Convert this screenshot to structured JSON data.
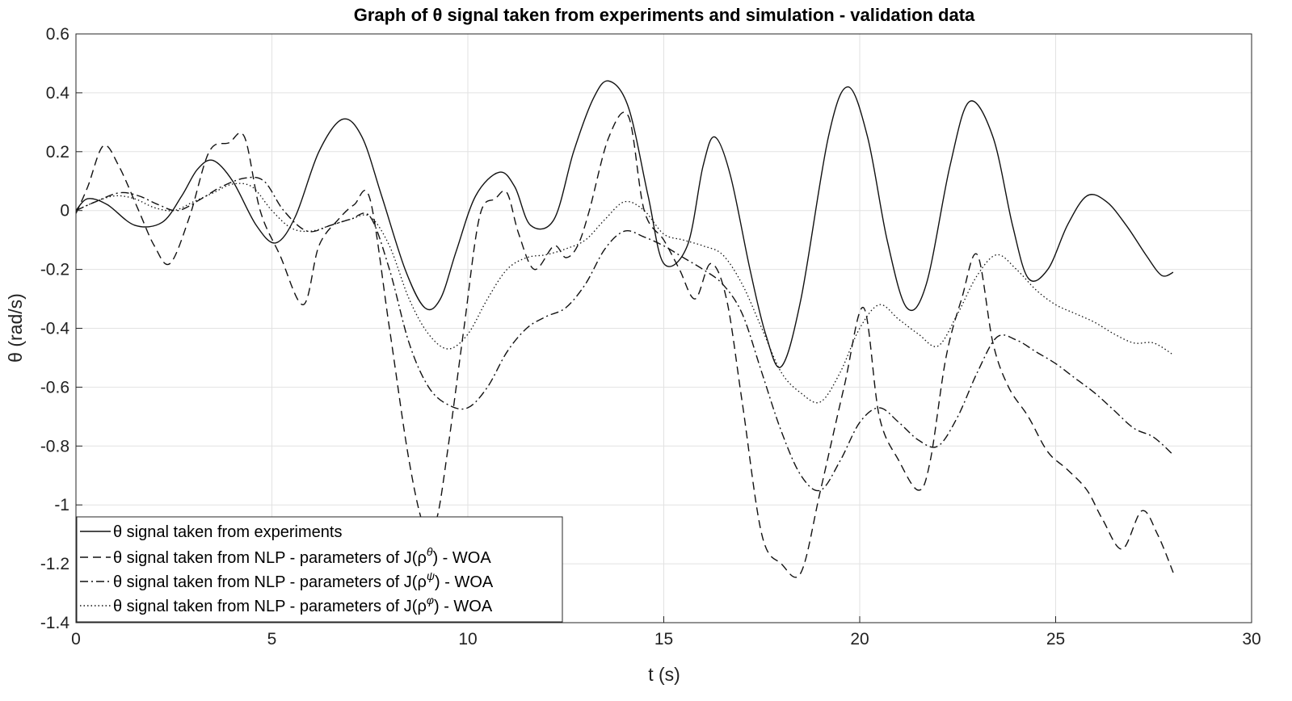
{
  "chart_data": {
    "type": "line",
    "title": "Graph of θ signal taken from experiments and simulation - validation data",
    "xlabel": "t (s)",
    "ylabel": "θ (rad/s)",
    "xlim": [
      0,
      30
    ],
    "ylim": [
      -1.4,
      0.6
    ],
    "xticks": [
      "0",
      "5",
      "10",
      "15",
      "20",
      "25",
      "30"
    ],
    "yticks": [
      "0.6",
      "0.4",
      "0.2",
      "0",
      "-0.2",
      "-0.4",
      "-0.6",
      "-0.8",
      "-1",
      "-1.2",
      "-1.4"
    ],
    "grid": true,
    "legend_position": "bottom-left",
    "series": [
      {
        "name": "θ signal taken from experiments",
        "style": "solid",
        "x": [
          0,
          0.3,
          0.8,
          1.5,
          2.2,
          2.7,
          3.1,
          3.5,
          4.0,
          4.6,
          5.1,
          5.6,
          6.2,
          6.8,
          7.3,
          7.8,
          8.4,
          8.9,
          9.3,
          9.7,
          10.2,
          10.8,
          11.2,
          11.6,
          12.2,
          12.7,
          13.2,
          13.6,
          14.1,
          14.6,
          15.0,
          15.6,
          16.0,
          16.3,
          16.7,
          17.2,
          17.6,
          18.0,
          18.5,
          19.2,
          19.7,
          20.2,
          20.7,
          21.2,
          21.7,
          22.3,
          22.8,
          23.4,
          23.9,
          24.3,
          24.8,
          25.3,
          25.8,
          26.3,
          26.8,
          27.3,
          27.7,
          28.0
        ],
        "values": [
          0.0,
          0.04,
          0.02,
          -0.05,
          -0.04,
          0.05,
          0.14,
          0.17,
          0.1,
          -0.05,
          -0.11,
          -0.02,
          0.2,
          0.31,
          0.25,
          0.05,
          -0.2,
          -0.33,
          -0.3,
          -0.14,
          0.05,
          0.13,
          0.08,
          -0.05,
          -0.03,
          0.2,
          0.38,
          0.44,
          0.35,
          0.05,
          -0.18,
          -0.12,
          0.15,
          0.25,
          0.12,
          -0.2,
          -0.42,
          -0.53,
          -0.3,
          0.25,
          0.42,
          0.25,
          -0.1,
          -0.33,
          -0.25,
          0.15,
          0.37,
          0.25,
          -0.05,
          -0.23,
          -0.2,
          -0.05,
          0.05,
          0.03,
          -0.05,
          -0.15,
          -0.22,
          -0.21
        ]
      },
      {
        "name": "θ signal taken from NLP - parameters of J(ρ^θ) - WOA",
        "style": "dashed",
        "x": [
          0,
          0.3,
          0.7,
          1.1,
          1.6,
          2.0,
          2.4,
          2.9,
          3.4,
          3.9,
          4.3,
          4.7,
          5.2,
          5.8,
          6.2,
          6.7,
          7.1,
          7.5,
          8.0,
          8.5,
          8.9,
          9.2,
          9.5,
          9.9,
          10.3,
          10.7,
          11.0,
          11.3,
          11.7,
          12.2,
          12.5,
          12.8,
          13.1,
          13.6,
          14.1,
          14.5,
          15.0,
          15.4,
          15.8,
          16.2,
          16.6,
          17.0,
          17.5,
          18.0,
          18.5,
          19.0,
          19.6,
          20.1,
          20.5,
          21.0,
          21.5,
          21.8,
          22.2,
          22.6,
          23.0,
          23.4,
          23.8,
          24.3,
          24.8,
          25.3,
          25.8,
          26.2,
          26.7,
          27.2,
          27.6,
          28.0
        ],
        "values": [
          -0.01,
          0.08,
          0.22,
          0.15,
          0.0,
          -0.12,
          -0.18,
          -0.02,
          0.2,
          0.23,
          0.25,
          0.0,
          -0.15,
          -0.32,
          -0.12,
          -0.03,
          0.02,
          0.04,
          -0.4,
          -0.85,
          -1.08,
          -1.05,
          -0.8,
          -0.4,
          -0.02,
          0.04,
          0.06,
          -0.08,
          -0.2,
          -0.12,
          -0.16,
          -0.12,
          0.0,
          0.25,
          0.32,
          0.0,
          -0.1,
          -0.2,
          -0.3,
          -0.18,
          -0.3,
          -0.65,
          -1.1,
          -1.2,
          -1.23,
          -0.95,
          -0.6,
          -0.33,
          -0.7,
          -0.85,
          -0.95,
          -0.85,
          -0.5,
          -0.3,
          -0.15,
          -0.45,
          -0.6,
          -0.7,
          -0.82,
          -0.88,
          -0.95,
          -1.05,
          -1.15,
          -1.02,
          -1.1,
          -1.23
        ]
      },
      {
        "name": "θ signal taken from NLP - parameters of J(ρ^ψ) - WOA",
        "style": "dashdot",
        "x": [
          0,
          0.5,
          1.1,
          1.6,
          2.1,
          2.6,
          3.2,
          3.7,
          4.3,
          4.8,
          5.3,
          5.9,
          6.5,
          7.0,
          7.5,
          8.0,
          8.5,
          9.0,
          9.5,
          10.0,
          10.5,
          11.0,
          11.5,
          12.0,
          12.5,
          13.0,
          13.5,
          14.0,
          14.5,
          15.0,
          15.5,
          16.0,
          16.5,
          17.0,
          17.5,
          18.0,
          18.5,
          19.0,
          19.5,
          20.0,
          20.5,
          21.0,
          21.5,
          22.0,
          22.5,
          23.0,
          23.5,
          24.0,
          24.5,
          25.0,
          25.5,
          26.0,
          26.5,
          27.0,
          27.5,
          28.0
        ],
        "values": [
          0.0,
          0.03,
          0.06,
          0.05,
          0.02,
          0.0,
          0.04,
          0.08,
          0.11,
          0.1,
          0.0,
          -0.07,
          -0.05,
          -0.03,
          -0.02,
          -0.2,
          -0.45,
          -0.6,
          -0.66,
          -0.67,
          -0.6,
          -0.48,
          -0.4,
          -0.36,
          -0.33,
          -0.25,
          -0.13,
          -0.07,
          -0.09,
          -0.12,
          -0.16,
          -0.2,
          -0.25,
          -0.35,
          -0.55,
          -0.75,
          -0.9,
          -0.95,
          -0.85,
          -0.72,
          -0.67,
          -0.72,
          -0.78,
          -0.8,
          -0.7,
          -0.55,
          -0.43,
          -0.44,
          -0.48,
          -0.52,
          -0.57,
          -0.62,
          -0.68,
          -0.74,
          -0.77,
          -0.83
        ]
      },
      {
        "name": "θ signal taken from NLP - parameters of J(ρ^φ) - WOA",
        "style": "dotted",
        "x": [
          0,
          0.5,
          1.0,
          1.5,
          2.0,
          2.5,
          3.0,
          3.5,
          4.0,
          4.5,
          5.0,
          5.5,
          6.0,
          6.5,
          7.0,
          7.5,
          8.0,
          8.5,
          9.0,
          9.5,
          10.0,
          10.5,
          11.0,
          11.5,
          12.0,
          12.5,
          13.0,
          13.5,
          14.0,
          14.5,
          15.0,
          15.5,
          16.0,
          16.5,
          17.0,
          17.5,
          18.0,
          18.5,
          19.0,
          19.5,
          20.0,
          20.5,
          21.0,
          21.5,
          22.0,
          22.5,
          23.0,
          23.5,
          24.0,
          24.5,
          25.0,
          25.5,
          26.0,
          26.5,
          27.0,
          27.5,
          28.0
        ],
        "values": [
          0.0,
          0.03,
          0.05,
          0.04,
          0.01,
          0.0,
          0.03,
          0.06,
          0.09,
          0.08,
          0.0,
          -0.06,
          -0.07,
          -0.05,
          -0.03,
          -0.02,
          -0.12,
          -0.3,
          -0.42,
          -0.47,
          -0.42,
          -0.3,
          -0.2,
          -0.16,
          -0.15,
          -0.13,
          -0.1,
          -0.03,
          0.03,
          0.0,
          -0.08,
          -0.1,
          -0.12,
          -0.15,
          -0.25,
          -0.4,
          -0.55,
          -0.62,
          -0.65,
          -0.55,
          -0.4,
          -0.32,
          -0.37,
          -0.42,
          -0.46,
          -0.35,
          -0.22,
          -0.15,
          -0.2,
          -0.27,
          -0.32,
          -0.35,
          -0.38,
          -0.42,
          -0.45,
          -0.45,
          -0.49
        ]
      }
    ]
  },
  "legend": {
    "entries": [
      {
        "prefix": "θ signal taken from experiments",
        "sup": "",
        "suffix": ""
      },
      {
        "prefix": "θ signal taken from NLP - parameters of J(ρ",
        "sup": "θ",
        "suffix": ") - WOA"
      },
      {
        "prefix": "θ signal taken from NLP - parameters of J(ρ",
        "sup": "ψ",
        "suffix": ") - WOA"
      },
      {
        "prefix": "θ signal taken from NLP - parameters of J(ρ",
        "sup": "φ",
        "suffix": ") - WOA"
      }
    ]
  }
}
